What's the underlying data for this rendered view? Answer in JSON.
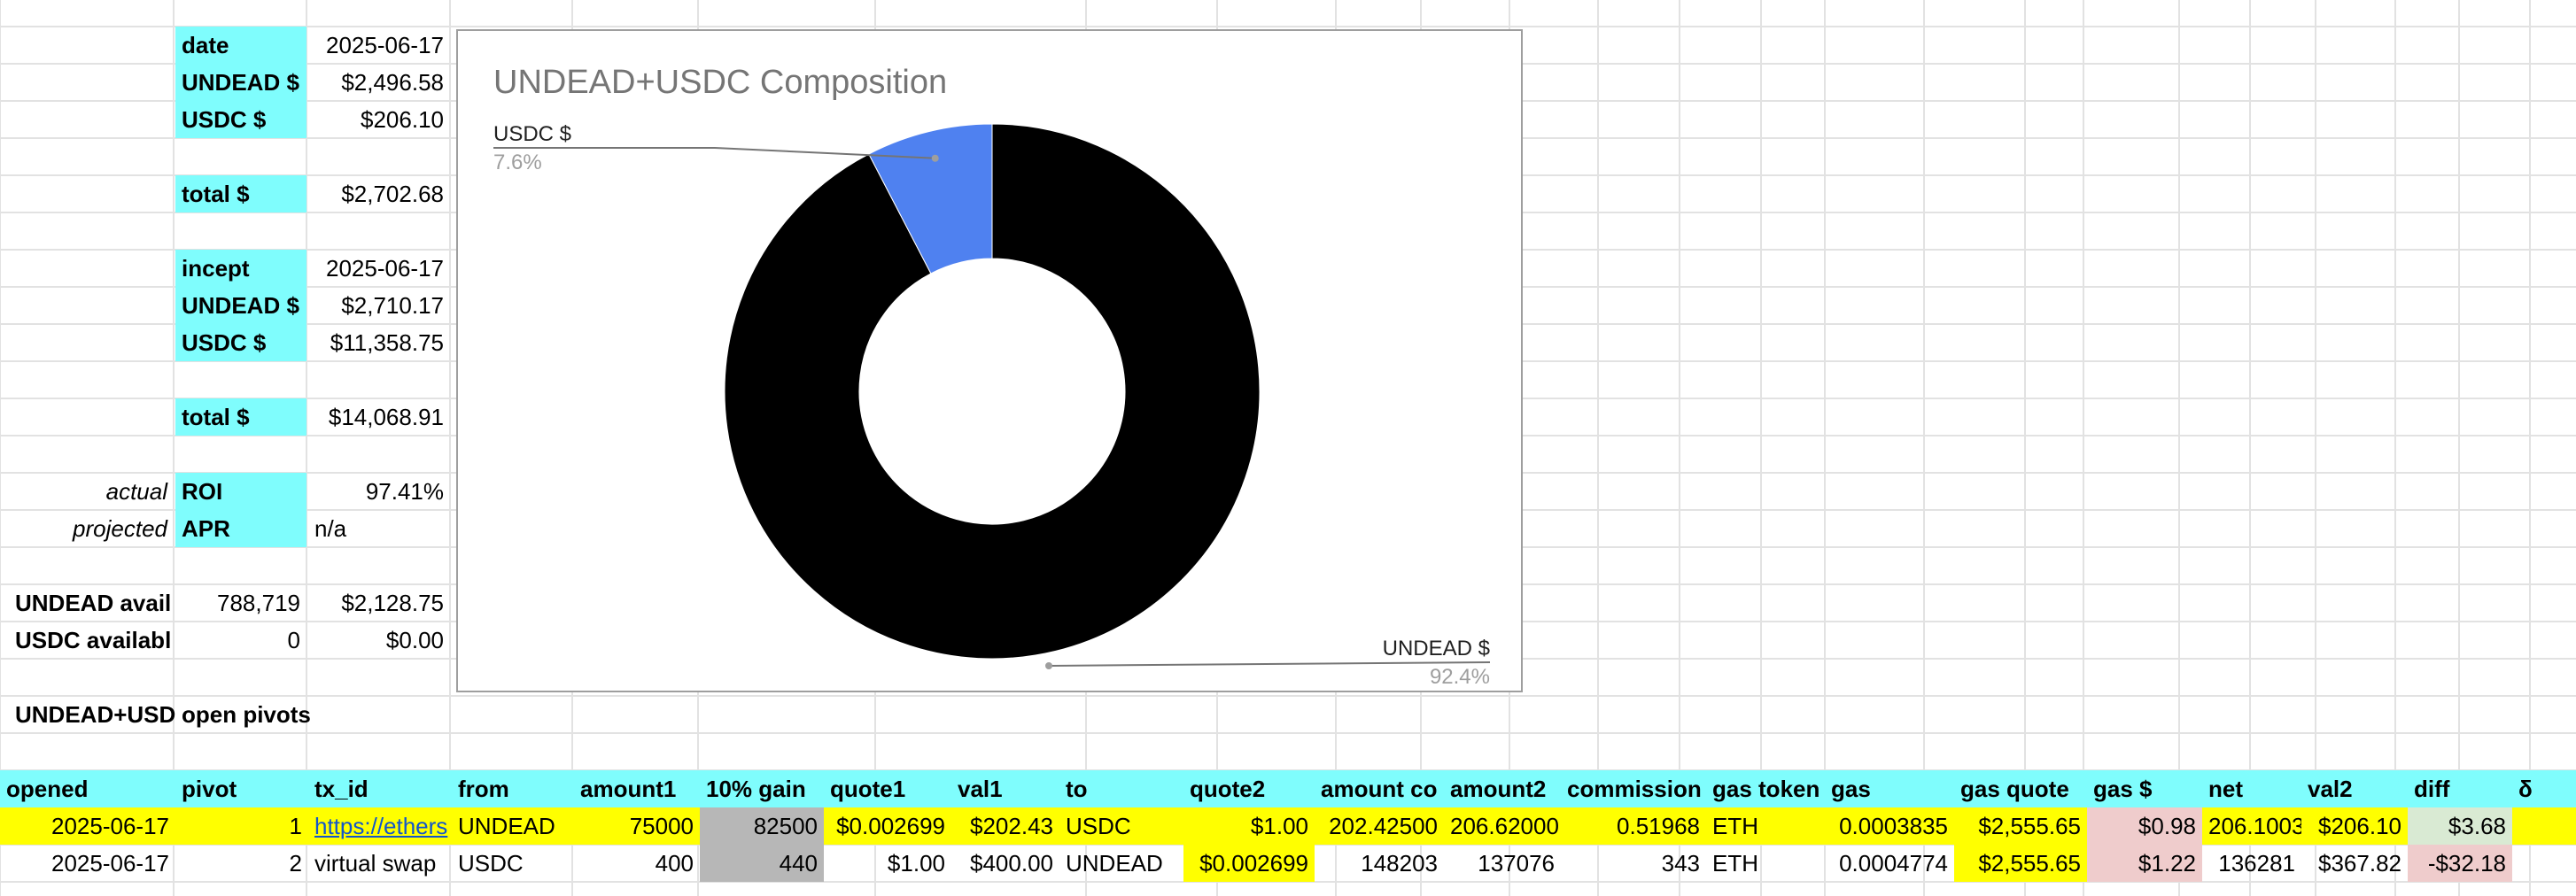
{
  "colors": {
    "header_cyan": "#7ffdfd",
    "highlight_yellow": "#ffff00",
    "grey_cell": "#b7b7b7",
    "pink_cell": "#efcccc",
    "light_green_cell": "#d9ead3",
    "link_blue": "#1155cc",
    "undead_slice": "#000000",
    "usdc_slice": "#4f81f0"
  },
  "summary": {
    "date_label": "date",
    "date_value": "2025-06-17",
    "undead_label": "UNDEAD $",
    "undead_value": "$2,496.58",
    "usdc_label": "USDC $",
    "usdc_value": "$206.10",
    "total_label": "total $",
    "total_value": "$2,702.68",
    "incept_label": "incept",
    "incept_value": "2025-06-17",
    "incept_undead_label": "UNDEAD $",
    "incept_undead_value": "$2,710.17",
    "incept_usdc_label": "USDC $",
    "incept_usdc_value": "$11,358.75",
    "incept_total_label": "total $",
    "incept_total_value": "$14,068.91",
    "actual_label": "actual",
    "roi_label": "ROI",
    "roi_value": "97.41%",
    "projected_label": "projected",
    "apr_label": "APR",
    "apr_value": "n/a",
    "undead_avail_label": "UNDEAD avail",
    "undead_avail_qty": "788,719",
    "undead_avail_value": "$2,128.75",
    "usdc_avail_label": "USDC availabl",
    "usdc_avail_qty": "0",
    "usdc_avail_value": "$0.00",
    "pivots_title_a": "UNDEAD+USD",
    "pivots_title_b": "open pivots"
  },
  "chart_data": {
    "type": "pie",
    "title": "UNDEAD+USDC Composition",
    "donut": true,
    "labels": [
      "UNDEAD $",
      "USDC $"
    ],
    "values": [
      2496.58,
      206.1
    ],
    "percent_labels": [
      "92.4%",
      "7.6%"
    ],
    "colors": [
      "#000000",
      "#4f81f0"
    ],
    "legend": "none"
  },
  "table": {
    "headers": [
      "opened",
      "pivot",
      "tx_id",
      "from",
      "amount1",
      "10% gain",
      "quote1",
      "val1",
      "to",
      "quote2",
      "amount co",
      "amount2",
      "commission",
      "gas token",
      "gas",
      "gas quote",
      "gas $",
      "net",
      "val2",
      "diff",
      "δ"
    ],
    "rows": [
      [
        "2025-06-17",
        "1",
        "https://ethers",
        "UNDEAD",
        "75000",
        "82500",
        "$0.002699",
        "$202.43",
        "USDC",
        "$1.00",
        "202.42500",
        "206.62000",
        "0.51968",
        "ETH",
        "0.0003835",
        "$2,555.65",
        "$0.98",
        "206.1003",
        "$206.10",
        "$3.68",
        ""
      ],
      [
        "2025-06-17",
        "2",
        "virtual swap",
        "USDC",
        "400",
        "440",
        "$1.00",
        "$400.00",
        "UNDEAD",
        "$0.002699",
        "148203",
        "137076",
        "343",
        "ETH",
        "0.0004774",
        "$2,555.65",
        "$1.22",
        "136281",
        "$367.82",
        "-$32.18",
        ""
      ]
    ]
  }
}
